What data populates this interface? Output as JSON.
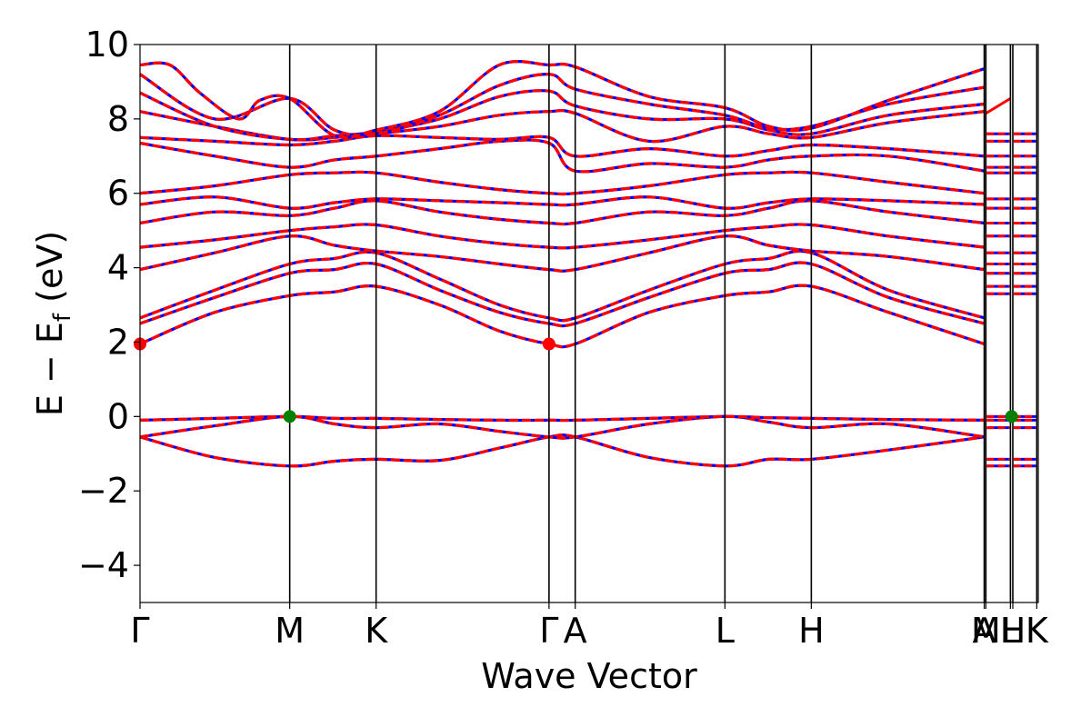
{
  "chart_data": {
    "type": "line",
    "title": "",
    "xlabel": "Wave Vector",
    "ylabel": "E − E",
    "ylabel_sub": "f",
    "ylabel_unit": "(eV)",
    "ylim": [
      -5,
      10
    ],
    "yticks": [
      -4,
      -2,
      0,
      2,
      4,
      6,
      8,
      10
    ],
    "ytick_labels": [
      "−4",
      "−2",
      "0",
      "2",
      "4",
      "6",
      "8",
      "10"
    ],
    "xlim": [
      0,
      6.0
    ],
    "kpoints": [
      {
        "label": "Γ",
        "x": 0.0
      },
      {
        "label": "M",
        "x": 1.0
      },
      {
        "label": "K",
        "x": 1.577
      },
      {
        "label": "Γ",
        "x": 2.732
      },
      {
        "label": "A",
        "x": 2.907
      },
      {
        "label": "L",
        "x": 3.907
      },
      {
        "label": "H",
        "x": 4.484
      },
      {
        "label": "A",
        "x": 5.639
      },
      {
        "label": "M",
        "x": 5.65
      },
      {
        "label": "L",
        "x": 5.814
      },
      {
        "label": "H",
        "x": 5.83
      },
      {
        "label": "K",
        "x": 5.99
      }
    ],
    "series_styles": [
      {
        "name": "",
        "color": "#0000ff",
        "style": "solid"
      },
      {
        "name": "",
        "color": "#ff0000",
        "style": "dashed"
      }
    ],
    "bands": [
      {
        "x": [
          0,
          0.5,
          1.0,
          1.3,
          1.577,
          2.0,
          2.4,
          2.732,
          2.907,
          3.4,
          3.907,
          4.2,
          4.484,
          5.0,
          5.639
        ],
        "y": [
          -0.55,
          -1.1,
          -1.33,
          -1.2,
          -1.15,
          -1.18,
          -0.85,
          -0.55,
          -0.55,
          -1.1,
          -1.33,
          -1.15,
          -1.15,
          -0.9,
          -0.55
        ]
      },
      {
        "x": [
          0,
          0.5,
          1.0,
          1.3,
          1.577,
          2.0,
          2.4,
          2.732,
          2.907,
          3.4,
          3.907,
          4.2,
          4.484,
          5.0,
          5.639
        ],
        "y": [
          -0.55,
          -0.25,
          0.0,
          -0.2,
          -0.3,
          -0.2,
          -0.4,
          -0.55,
          -0.55,
          -0.2,
          0.0,
          -0.15,
          -0.3,
          -0.2,
          -0.55
        ]
      },
      {
        "x": [
          0,
          0.5,
          1.0,
          1.3,
          1.577,
          2.0,
          2.4,
          2.732,
          2.907,
          3.4,
          3.907,
          4.2,
          4.484,
          5.0,
          5.639
        ],
        "y": [
          -0.1,
          -0.05,
          0.0,
          -0.05,
          -0.05,
          -0.08,
          -0.1,
          -0.1,
          -0.1,
          -0.05,
          0.0,
          -0.03,
          -0.05,
          -0.08,
          -0.1
        ]
      },
      {
        "x": [
          0,
          0.5,
          1.0,
          1.3,
          1.577,
          2.0,
          2.4,
          2.732,
          2.907,
          3.4,
          3.907,
          4.2,
          4.484,
          5.0,
          5.639
        ],
        "y": [
          1.95,
          2.8,
          3.25,
          3.35,
          3.5,
          3.0,
          2.3,
          1.95,
          1.95,
          2.8,
          3.25,
          3.35,
          3.5,
          2.8,
          1.95
        ]
      },
      {
        "x": [
          0,
          0.5,
          1.0,
          1.3,
          1.577,
          2.0,
          2.4,
          2.732,
          2.907,
          3.4,
          3.907,
          4.2,
          4.484,
          5.0,
          5.639
        ],
        "y": [
          2.5,
          3.2,
          3.85,
          3.95,
          4.1,
          3.4,
          2.8,
          2.5,
          2.5,
          3.2,
          3.85,
          3.95,
          4.1,
          3.2,
          2.5
        ]
      },
      {
        "x": [
          0,
          0.5,
          1.0,
          1.3,
          1.577,
          2.0,
          2.4,
          2.732,
          2.907,
          3.4,
          3.907,
          4.2,
          4.484,
          5.0,
          5.639
        ],
        "y": [
          2.65,
          3.4,
          4.1,
          4.25,
          4.4,
          3.7,
          3.0,
          2.65,
          2.65,
          3.4,
          4.1,
          4.25,
          4.4,
          3.4,
          2.65
        ]
      },
      {
        "x": [
          0,
          0.5,
          1.0,
          1.3,
          1.577,
          2.0,
          2.4,
          2.732,
          2.907,
          3.4,
          3.907,
          4.2,
          4.484,
          5.0,
          5.639
        ],
        "y": [
          3.95,
          4.4,
          4.85,
          4.6,
          4.45,
          4.3,
          4.1,
          3.95,
          3.95,
          4.4,
          4.85,
          4.6,
          4.45,
          4.3,
          3.95
        ]
      },
      {
        "x": [
          0,
          0.5,
          1.0,
          1.3,
          1.577,
          2.0,
          2.4,
          2.732,
          2.907,
          3.4,
          3.907,
          4.2,
          4.484,
          5.0,
          5.639
        ],
        "y": [
          4.55,
          4.75,
          5.0,
          5.1,
          5.15,
          4.85,
          4.65,
          4.55,
          4.55,
          4.75,
          5.0,
          5.1,
          5.15,
          4.85,
          4.55
        ]
      },
      {
        "x": [
          0,
          0.5,
          1.0,
          1.3,
          1.577,
          2.0,
          2.4,
          2.732,
          2.907,
          3.4,
          3.907,
          4.2,
          4.484,
          5.0,
          5.639
        ],
        "y": [
          5.2,
          5.5,
          5.4,
          5.6,
          5.8,
          5.5,
          5.3,
          5.2,
          5.2,
          5.5,
          5.4,
          5.6,
          5.8,
          5.5,
          5.2
        ]
      },
      {
        "x": [
          0,
          0.5,
          1.0,
          1.3,
          1.577,
          2.0,
          2.4,
          2.732,
          2.907,
          3.4,
          3.907,
          4.2,
          4.484,
          5.0,
          5.639
        ],
        "y": [
          5.7,
          5.9,
          5.6,
          5.75,
          5.85,
          5.8,
          5.75,
          5.7,
          5.7,
          5.9,
          5.6,
          5.75,
          5.85,
          5.8,
          5.7
        ]
      },
      {
        "x": [
          0,
          0.5,
          1.0,
          1.3,
          1.577,
          2.0,
          2.4,
          2.732,
          2.907,
          3.4,
          3.907,
          4.2,
          4.484,
          5.0,
          5.639
        ],
        "y": [
          6.0,
          6.2,
          6.5,
          6.55,
          6.55,
          6.3,
          6.1,
          6.0,
          6.0,
          6.2,
          6.5,
          6.55,
          6.55,
          6.3,
          6.0
        ]
      },
      {
        "x": [
          0,
          0.5,
          1.0,
          1.3,
          1.577,
          2.0,
          2.4,
          2.732,
          2.907,
          3.4,
          3.907,
          4.2,
          4.484,
          5.0,
          5.639
        ],
        "y": [
          7.35,
          7.0,
          6.7,
          6.9,
          7.0,
          7.2,
          7.4,
          7.35,
          6.6,
          6.8,
          6.7,
          6.9,
          7.0,
          7.0,
          6.6
        ]
      },
      {
        "x": [
          0,
          0.5,
          1.0,
          1.3,
          1.577,
          2.0,
          2.4,
          2.732,
          2.907,
          3.4,
          3.907,
          4.2,
          4.484,
          5.0,
          5.639
        ],
        "y": [
          7.5,
          7.4,
          7.3,
          7.4,
          7.55,
          7.5,
          7.45,
          7.5,
          7.0,
          7.2,
          7.0,
          7.15,
          7.3,
          7.2,
          7.0
        ]
      },
      {
        "x": [
          0,
          0.5,
          1.0,
          1.3,
          1.577,
          2.0,
          2.4,
          2.732,
          2.907,
          3.4,
          3.907,
          4.2,
          4.484,
          5.0,
          5.639
        ],
        "y": [
          8.2,
          7.8,
          7.45,
          7.5,
          7.6,
          7.8,
          8.1,
          8.2,
          8.15,
          7.4,
          7.8,
          7.6,
          7.5,
          7.9,
          8.2
        ]
      },
      {
        "x": [
          0,
          0.5,
          1.0,
          1.3,
          1.577,
          2.0,
          2.4,
          2.732,
          2.907,
          3.4,
          3.907,
          4.2,
          4.484,
          5.0,
          5.639
        ],
        "y": [
          8.7,
          7.8,
          7.45,
          7.55,
          7.65,
          8.0,
          8.6,
          8.75,
          8.35,
          8.0,
          8.0,
          7.7,
          7.6,
          8.1,
          8.4
        ]
      },
      {
        "x": [
          0,
          0.5,
          1.0,
          1.3,
          1.577,
          2.0,
          2.4,
          2.732,
          2.907,
          3.4,
          3.907,
          4.2,
          4.484,
          5.0,
          5.639
        ],
        "y": [
          9.2,
          8.0,
          8.55,
          7.7,
          7.6,
          8.1,
          8.9,
          9.2,
          8.8,
          8.4,
          8.1,
          7.75,
          7.8,
          8.4,
          8.85
        ]
      },
      {
        "x": [
          0,
          0.2,
          0.4,
          0.66,
          0.8,
          1.0,
          1.3,
          1.577,
          2.0,
          2.4,
          2.732,
          2.907,
          3.4,
          3.907,
          4.2,
          4.484,
          5.0,
          5.639
        ],
        "y": [
          9.45,
          9.45,
          8.7,
          8.0,
          8.5,
          8.55,
          7.55,
          7.7,
          8.2,
          9.45,
          9.45,
          9.4,
          8.6,
          8.3,
          7.8,
          7.75,
          8.5,
          9.35
        ]
      }
    ],
    "markers": [
      {
        "x": 0.0,
        "y": 1.95,
        "color": "#ff0000"
      },
      {
        "x": 2.732,
        "y": 1.95,
        "color": "#ff0000"
      },
      {
        "x": 1.0,
        "y": 0.0,
        "color": "#008000"
      },
      {
        "x": 5.822,
        "y": 0.0,
        "color": "#008000"
      }
    ],
    "grid": false
  }
}
